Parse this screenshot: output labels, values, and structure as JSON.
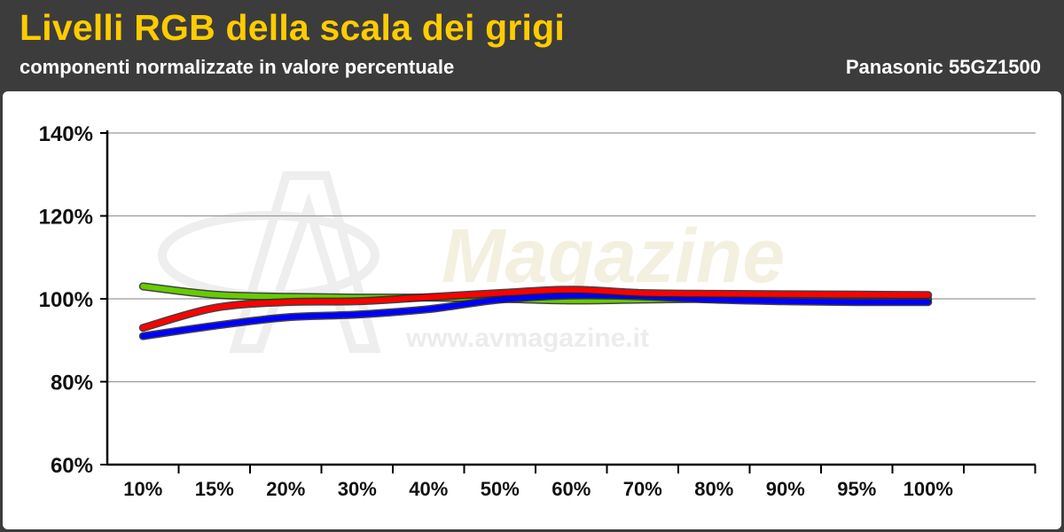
{
  "header": {
    "title": "Livelli RGB della scala dei grigi",
    "subtitle": "componenti normalizzate in valore percentuale",
    "model": "Panasonic 55GZ1500"
  },
  "watermark": {
    "brand": "Magazine",
    "site": "www.avmagazine.it"
  },
  "colors": {
    "title": "#ffcc00",
    "background": "#3c3c3c",
    "red": "#ff0000",
    "green": "#66cc00",
    "blue": "#0000ff"
  },
  "chart_data": {
    "type": "line",
    "title": "Livelli RGB della scala dei grigi",
    "subtitle": "componenti normalizzate in valore percentuale",
    "categories": [
      "10%",
      "15%",
      "20%",
      "30%",
      "40%",
      "50%",
      "60%",
      "70%",
      "80%",
      "90%",
      "95%",
      "100%"
    ],
    "y_ticks": [
      "60%",
      "80%",
      "100%",
      "120%",
      "140%"
    ],
    "ylim": [
      60,
      140
    ],
    "grid": true,
    "series": [
      {
        "color": "#66cc00",
        "values": [
          103,
          101,
          100.5,
          100.3,
          100.3,
          100,
          99.6,
          99.8,
          100,
          99.8,
          99.8,
          99.9
        ]
      },
      {
        "color": "#0000ff",
        "values": [
          91,
          93.5,
          95.5,
          96.2,
          97.5,
          99.8,
          100.8,
          100.6,
          99.8,
          99.4,
          99.2,
          99.2
        ]
      },
      {
        "color": "#ff0000",
        "values": [
          93,
          97.8,
          99.2,
          99.4,
          100.4,
          101.4,
          102.2,
          101.4,
          101.2,
          101.1,
          101,
          100.9
        ]
      }
    ]
  }
}
